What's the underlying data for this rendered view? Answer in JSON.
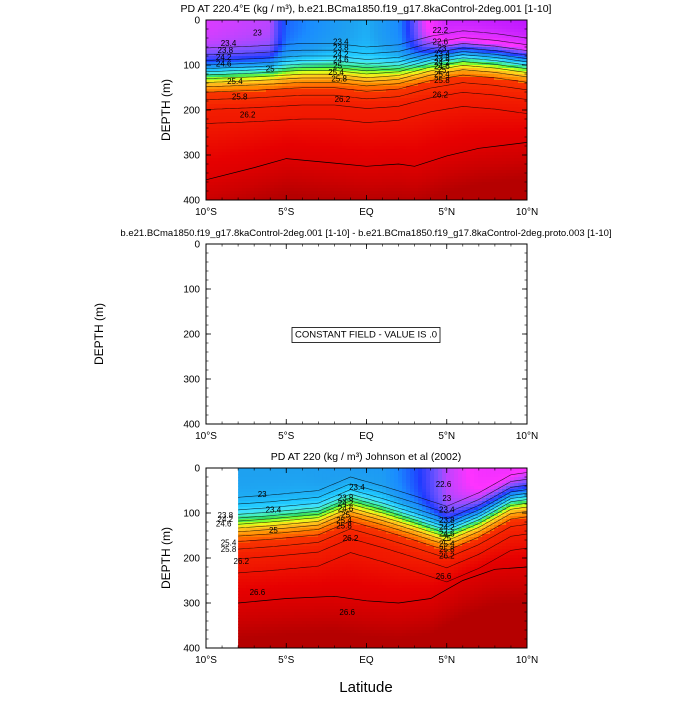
{
  "figure": {
    "shared_xlabel": "Latitude",
    "x_ticks": [
      "10°S",
      "5°S",
      "EQ",
      "5°N",
      "10°N"
    ],
    "y_ticks": [
      "0",
      "100",
      "200",
      "300",
      "400"
    ]
  },
  "chart_data": [
    {
      "type": "heatmap",
      "title": "PD AT 220.4°E (kg / m³), b.e21.BCma1850.f19_g17.8kaControl-2deg.001 [1-10]",
      "xlabel": "",
      "ylabel": "DEPTH (m)",
      "xlim": [
        -10,
        10
      ],
      "ylim": [
        400,
        0
      ],
      "x_ticks": [
        "10°S",
        "5°S",
        "EQ",
        "5°N",
        "10°N"
      ],
      "y_ticks": [
        "0",
        "100",
        "200",
        "300",
        "400"
      ],
      "data_x_range": [
        -10,
        10
      ],
      "thermocline": [
        [
          -10,
          122
        ],
        [
          -7,
          118
        ],
        [
          -4,
          112
        ],
        [
          -2,
          112
        ],
        [
          0,
          120
        ],
        [
          2,
          115
        ],
        [
          4,
          96
        ],
        [
          6,
          84
        ],
        [
          8,
          90
        ],
        [
          10,
          100
        ]
      ],
      "surface_density": [
        [
          -10,
          21.5
        ],
        [
          -6,
          21.6
        ],
        [
          -5,
          22.4
        ],
        [
          -2,
          22.8
        ],
        [
          0,
          23.0
        ],
        [
          2,
          22.6
        ],
        [
          3.5,
          21.5
        ],
        [
          5,
          20.9
        ],
        [
          10,
          20.8
        ]
      ],
      "deep_level_26_6": [
        [
          -10,
          355
        ],
        [
          -7,
          328
        ],
        [
          -5,
          308
        ],
        [
          -2,
          318
        ],
        [
          0,
          325
        ],
        [
          2,
          320
        ],
        [
          3,
          325
        ],
        [
          5,
          302
        ],
        [
          7,
          285
        ],
        [
          10,
          272
        ]
      ],
      "contour_labels": [
        {
          "text": "23",
          "x": -6.8,
          "y": 28
        },
        {
          "text": "23.4",
          "x": -8.6,
          "y": 51
        },
        {
          "text": "23.8",
          "x": -8.8,
          "y": 67
        },
        {
          "text": "24.2",
          "x": -8.9,
          "y": 82
        },
        {
          "text": "24.6",
          "x": -8.9,
          "y": 97
        },
        {
          "text": "25",
          "x": -6.0,
          "y": 108
        },
        {
          "text": "25.4",
          "x": -8.2,
          "y": 135
        },
        {
          "text": "25.8",
          "x": -7.9,
          "y": 170
        },
        {
          "text": "26.2",
          "x": -7.4,
          "y": 210
        },
        {
          "text": "23.4",
          "x": -1.6,
          "y": 48
        },
        {
          "text": "23.8",
          "x": -1.6,
          "y": 61
        },
        {
          "text": "24.2",
          "x": -1.6,
          "y": 75
        },
        {
          "text": "24.6",
          "x": -1.6,
          "y": 88
        },
        {
          "text": "25",
          "x": -1.8,
          "y": 101
        },
        {
          "text": "25.4",
          "x": -1.9,
          "y": 115
        },
        {
          "text": "25.8",
          "x": -1.7,
          "y": 130
        },
        {
          "text": "26.2",
          "x": -1.5,
          "y": 175
        },
        {
          "text": "22.6",
          "x": 4.6,
          "y": 48
        },
        {
          "text": "23",
          "x": 4.7,
          "y": 62
        },
        {
          "text": "23.4",
          "x": 4.7,
          "y": 74
        },
        {
          "text": "23.8",
          "x": 4.7,
          "y": 84
        },
        {
          "text": "24.2",
          "x": 4.7,
          "y": 93
        },
        {
          "text": "24.6",
          "x": 4.7,
          "y": 102
        },
        {
          "text": "25",
          "x": 4.7,
          "y": 110
        },
        {
          "text": "25.4",
          "x": 4.7,
          "y": 120
        },
        {
          "text": "25.8",
          "x": 4.7,
          "y": 133
        },
        {
          "text": "26.2",
          "x": 4.6,
          "y": 165
        },
        {
          "text": "22.2",
          "x": 4.6,
          "y": 22
        }
      ]
    },
    {
      "type": "heatmap",
      "title": "b.e21.BCma1850.f19_g17.8kaControl-2deg.001 [1-10] - b.e21.BCma1850.f19_g17.8kaControl-2deg.proto.003 [1-10]",
      "xlabel": "",
      "ylabel": "DEPTH (m)",
      "xlim": [
        -10,
        10
      ],
      "ylim": [
        400,
        0
      ],
      "x_ticks": [
        "10°S",
        "5°S",
        "EQ",
        "5°N",
        "10°N"
      ],
      "y_ticks": [
        "0",
        "100",
        "200",
        "300",
        "400"
      ],
      "annotation": "CONSTANT FIELD - VALUE IS .0"
    },
    {
      "type": "heatmap",
      "title": "PD AT 220 (kg / m³) Johnson et al (2002)",
      "xlabel": "",
      "ylabel": "DEPTH (m)",
      "xlim": [
        -10,
        10
      ],
      "ylim": [
        400,
        0
      ],
      "x_ticks": [
        "10°S",
        "5°S",
        "EQ",
        "5°N",
        "10°N"
      ],
      "y_ticks": [
        "0",
        "100",
        "200",
        "300",
        "400"
      ],
      "data_x_range": [
        -8,
        10
      ],
      "thermocline": [
        [
          -8,
          125
        ],
        [
          -6,
          120
        ],
        [
          -3,
          110
        ],
        [
          -1,
          80
        ],
        [
          1,
          100
        ],
        [
          3,
          122
        ],
        [
          5,
          145
        ],
        [
          7,
          115
        ],
        [
          9,
          75
        ],
        [
          10,
          70
        ]
      ],
      "surface_density": [
        [
          -8,
          22.9
        ],
        [
          -4,
          22.9
        ],
        [
          -1,
          22.8
        ],
        [
          1,
          22.8
        ],
        [
          3,
          22.3
        ],
        [
          5,
          21.6
        ],
        [
          7,
          21.3
        ],
        [
          9,
          21.2
        ],
        [
          10,
          21.3
        ]
      ],
      "deep_level_26_6": [
        [
          -8,
          300
        ],
        [
          -5,
          290
        ],
        [
          -2,
          285
        ],
        [
          0,
          295
        ],
        [
          2,
          300
        ],
        [
          4,
          290
        ],
        [
          6,
          250
        ],
        [
          8,
          225
        ],
        [
          10,
          220
        ]
      ],
      "contour_labels": [
        {
          "text": "23",
          "x": -6.5,
          "y": 58
        },
        {
          "text": "23.4",
          "x": -5.8,
          "y": 92
        },
        {
          "text": "23.8",
          "x": -8.8,
          "y": 104
        },
        {
          "text": "24.2",
          "x": -8.8,
          "y": 113
        },
        {
          "text": "24.6",
          "x": -8.9,
          "y": 123
        },
        {
          "text": "25",
          "x": -5.8,
          "y": 138
        },
        {
          "text": "25.4",
          "x": -8.6,
          "y": 165
        },
        {
          "text": "25.8",
          "x": -8.6,
          "y": 180
        },
        {
          "text": "26.2",
          "x": -7.8,
          "y": 207
        },
        {
          "text": "26.6",
          "x": -6.8,
          "y": 275
        },
        {
          "text": "23.4",
          "x": -0.6,
          "y": 42
        },
        {
          "text": "23.8",
          "x": -1.3,
          "y": 65
        },
        {
          "text": "24.2",
          "x": -1.3,
          "y": 78
        },
        {
          "text": "24.6",
          "x": -1.3,
          "y": 90
        },
        {
          "text": "25",
          "x": -1.3,
          "y": 103
        },
        {
          "text": "25.4",
          "x": -1.4,
          "y": 115
        },
        {
          "text": "25.8",
          "x": -1.4,
          "y": 128
        },
        {
          "text": "26.2",
          "x": -1.0,
          "y": 155
        },
        {
          "text": "26.6",
          "x": -1.2,
          "y": 320
        },
        {
          "text": "22.6",
          "x": 4.8,
          "y": 35
        },
        {
          "text": "23",
          "x": 5.0,
          "y": 67
        },
        {
          "text": "23.4",
          "x": 5.0,
          "y": 92
        },
        {
          "text": "23.8",
          "x": 5.0,
          "y": 116
        },
        {
          "text": "24.2",
          "x": 5.0,
          "y": 131
        },
        {
          "text": "24.6",
          "x": 5.0,
          "y": 146
        },
        {
          "text": "25",
          "x": 5.0,
          "y": 156
        },
        {
          "text": "25.4",
          "x": 5.0,
          "y": 168
        },
        {
          "text": "25.8",
          "x": 5.0,
          "y": 180
        },
        {
          "text": "26.2",
          "x": 5.0,
          "y": 194
        },
        {
          "text": "26.6",
          "x": 4.8,
          "y": 240
        }
      ]
    }
  ]
}
